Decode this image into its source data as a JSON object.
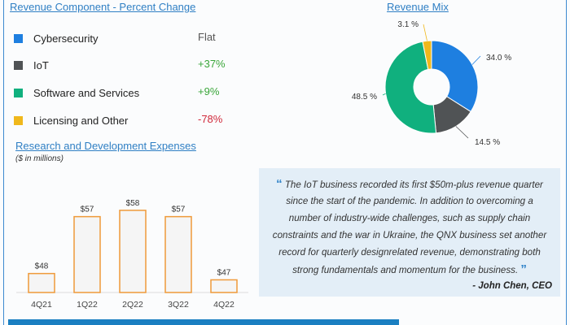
{
  "headers": {
    "component": "Revenue Component - Percent Change",
    "mix": "Revenue Mix",
    "rnd": "Research and Development Expenses",
    "rnd_sub": "($ in millions)"
  },
  "components": [
    {
      "label": "Cybersecurity",
      "change": "Flat",
      "color": "#1e7fe0",
      "change_color": "#555555"
    },
    {
      "label": "IoT",
      "change": "+37%",
      "color": "#505355",
      "change_color": "#3aa63a"
    },
    {
      "label": "Software and Services",
      "change": "+9%",
      "color": "#10b07e",
      "change_color": "#3aa63a"
    },
    {
      "label": "Licensing and Other",
      "change": "-78%",
      "color": "#f0b81c",
      "change_color": "#d0283a"
    }
  ],
  "chart_data": [
    {
      "type": "bar",
      "title": "Research and Development Expenses",
      "subtitle": "($ in millions)",
      "categories": [
        "4Q21",
        "1Q22",
        "2Q22",
        "3Q22",
        "4Q22"
      ],
      "values": [
        48,
        57,
        58,
        57,
        47
      ],
      "data_labels": [
        "$48",
        "$57",
        "$58",
        "$57",
        "$47"
      ],
      "ylim": [
        45,
        60
      ],
      "bar_color": "#f5f5f5",
      "bar_border": "#ef9a3a",
      "grid": false
    },
    {
      "type": "pie",
      "title": "Revenue Mix",
      "donut": true,
      "slices": [
        {
          "label": "Cybersecurity",
          "value": 34.0,
          "text": "34.0 %",
          "color": "#1e7fe0"
        },
        {
          "label": "IoT",
          "value": 14.5,
          "text": "14.5 %",
          "color": "#505355"
        },
        {
          "label": "Software and Services",
          "value": 48.5,
          "text": "48.5 %",
          "color": "#10b07e"
        },
        {
          "label": "Licensing and Other",
          "value": 3.1,
          "text": "3.1 %",
          "color": "#f0b81c"
        }
      ]
    }
  ],
  "quote": {
    "lines": [
      "The IoT business recorded its first $50m-plus revenue quarter",
      "since the start of the pandemic. In addition to overcoming a",
      "number of industry-wide challenges, such as supply chain",
      "constraints and the war in Ukraine, the QNX business set another",
      "record for quarterly designrelated revenue, demonstrating both",
      "strong fundamentals and momentum for the business."
    ],
    "open": "“",
    "close": "”",
    "author": "- John Chen, CEO"
  },
  "colors": {
    "accent": "#2f7fc4",
    "quote_bg": "#e3eef7",
    "banner": "#1a7fc1"
  }
}
